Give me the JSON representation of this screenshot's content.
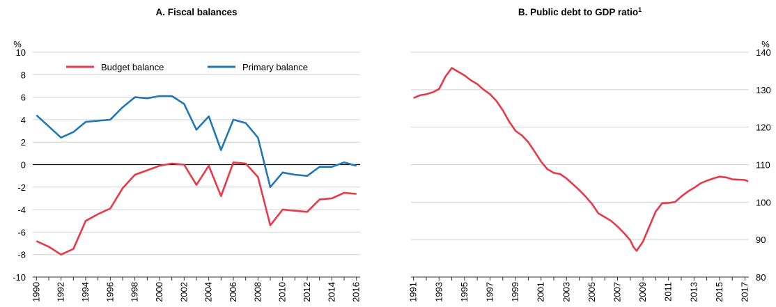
{
  "chart_data": [
    {
      "type": "line",
      "title": "A. Fiscal balances",
      "y_unit": "%",
      "y_axis_side": "left",
      "zero_line": true,
      "grid": true,
      "legend": "top",
      "x": [
        1990,
        1991,
        1992,
        1993,
        1994,
        1995,
        1996,
        1997,
        1998,
        1999,
        2000,
        2001,
        2002,
        2003,
        2004,
        2005,
        2006,
        2007,
        2008,
        2009,
        2010,
        2011,
        2012,
        2013,
        2014,
        2015,
        2016
      ],
      "series": [
        {
          "name": "Budget balance",
          "color": "#e8394a",
          "values": [
            -6.8,
            -7.3,
            -8.0,
            -7.5,
            -5.0,
            -4.4,
            -3.9,
            -2.1,
            -0.9,
            -0.5,
            -0.1,
            0.1,
            0.0,
            -1.8,
            -0.1,
            -2.8,
            0.2,
            0.1,
            -1.1,
            -5.4,
            -4.0,
            -4.1,
            -4.2,
            -3.1,
            -3.0,
            -2.5,
            -2.6
          ]
        },
        {
          "name": "Primary balance",
          "color": "#1f77b4",
          "values": [
            4.4,
            3.4,
            2.4,
            2.9,
            3.8,
            3.9,
            4.0,
            5.1,
            6.0,
            5.9,
            6.1,
            6.1,
            5.4,
            3.1,
            4.3,
            1.3,
            4.0,
            3.7,
            2.4,
            -2.0,
            -0.7,
            -0.9,
            -1.0,
            -0.2,
            -0.2,
            0.2,
            -0.1
          ]
        }
      ],
      "xlim": [
        1989.7,
        2016.3
      ],
      "xticks": [
        1990,
        1992,
        1994,
        1996,
        1998,
        2000,
        2002,
        2004,
        2006,
        2008,
        2010,
        2012,
        2014,
        2016
      ],
      "ylim": [
        -10,
        10
      ],
      "yticks": [
        -10,
        -8,
        -6,
        -4,
        -2,
        0,
        2,
        4,
        6,
        8,
        10
      ]
    },
    {
      "type": "line",
      "title": "B. Public debt to GDP ratio",
      "title_note": "1",
      "y_unit": "%",
      "y_axis_side": "right",
      "zero_line": false,
      "grid": true,
      "x": [
        1991,
        1991.5,
        1992,
        1992.5,
        1993,
        1993.5,
        1994,
        1994.5,
        1995,
        1995.5,
        1996,
        1996.5,
        1997,
        1997.5,
        1998,
        1998.5,
        1999,
        1999.5,
        2000,
        2000.5,
        2001,
        2001.5,
        2002,
        2002.5,
        2003,
        2003.5,
        2004,
        2004.5,
        2005,
        2005.5,
        2006,
        2006.5,
        2007,
        2007.5,
        2008,
        2008.25,
        2008.5,
        2009,
        2009.5,
        2010,
        2010.5,
        2011,
        2011.5,
        2012,
        2012.5,
        2013,
        2013.5,
        2014,
        2014.5,
        2015,
        2015.5,
        2016,
        2016.5,
        2017,
        2017.25
      ],
      "series": [
        {
          "name": "Public debt to GDP ratio",
          "color": "#e8394a",
          "values": [
            127.8,
            128.5,
            128.8,
            129.3,
            130.2,
            133.5,
            135.8,
            134.8,
            133.8,
            132.5,
            131.5,
            130.0,
            128.8,
            127.0,
            124.5,
            121.5,
            119.0,
            117.8,
            116.0,
            113.5,
            110.8,
            108.8,
            107.8,
            107.5,
            106.3,
            104.8,
            103.2,
            101.5,
            99.5,
            97.0,
            96.0,
            95.0,
            93.5,
            91.8,
            89.8,
            88.0,
            87.0,
            89.5,
            93.5,
            97.5,
            99.7,
            99.8,
            100.0,
            101.5,
            102.8,
            103.8,
            105.0,
            105.7,
            106.3,
            106.8,
            106.6,
            106.1,
            106.0,
            105.9,
            105.5
          ]
        }
      ],
      "xlim": [
        1990.8,
        2017.3
      ],
      "xticks": [
        1991,
        1993,
        1995,
        1997,
        1999,
        2001,
        2003,
        2005,
        2007,
        2009,
        2011,
        2013,
        2015,
        2017
      ],
      "ylim": [
        80,
        140
      ],
      "yticks": [
        80,
        90,
        100,
        110,
        120,
        130,
        140
      ]
    }
  ]
}
